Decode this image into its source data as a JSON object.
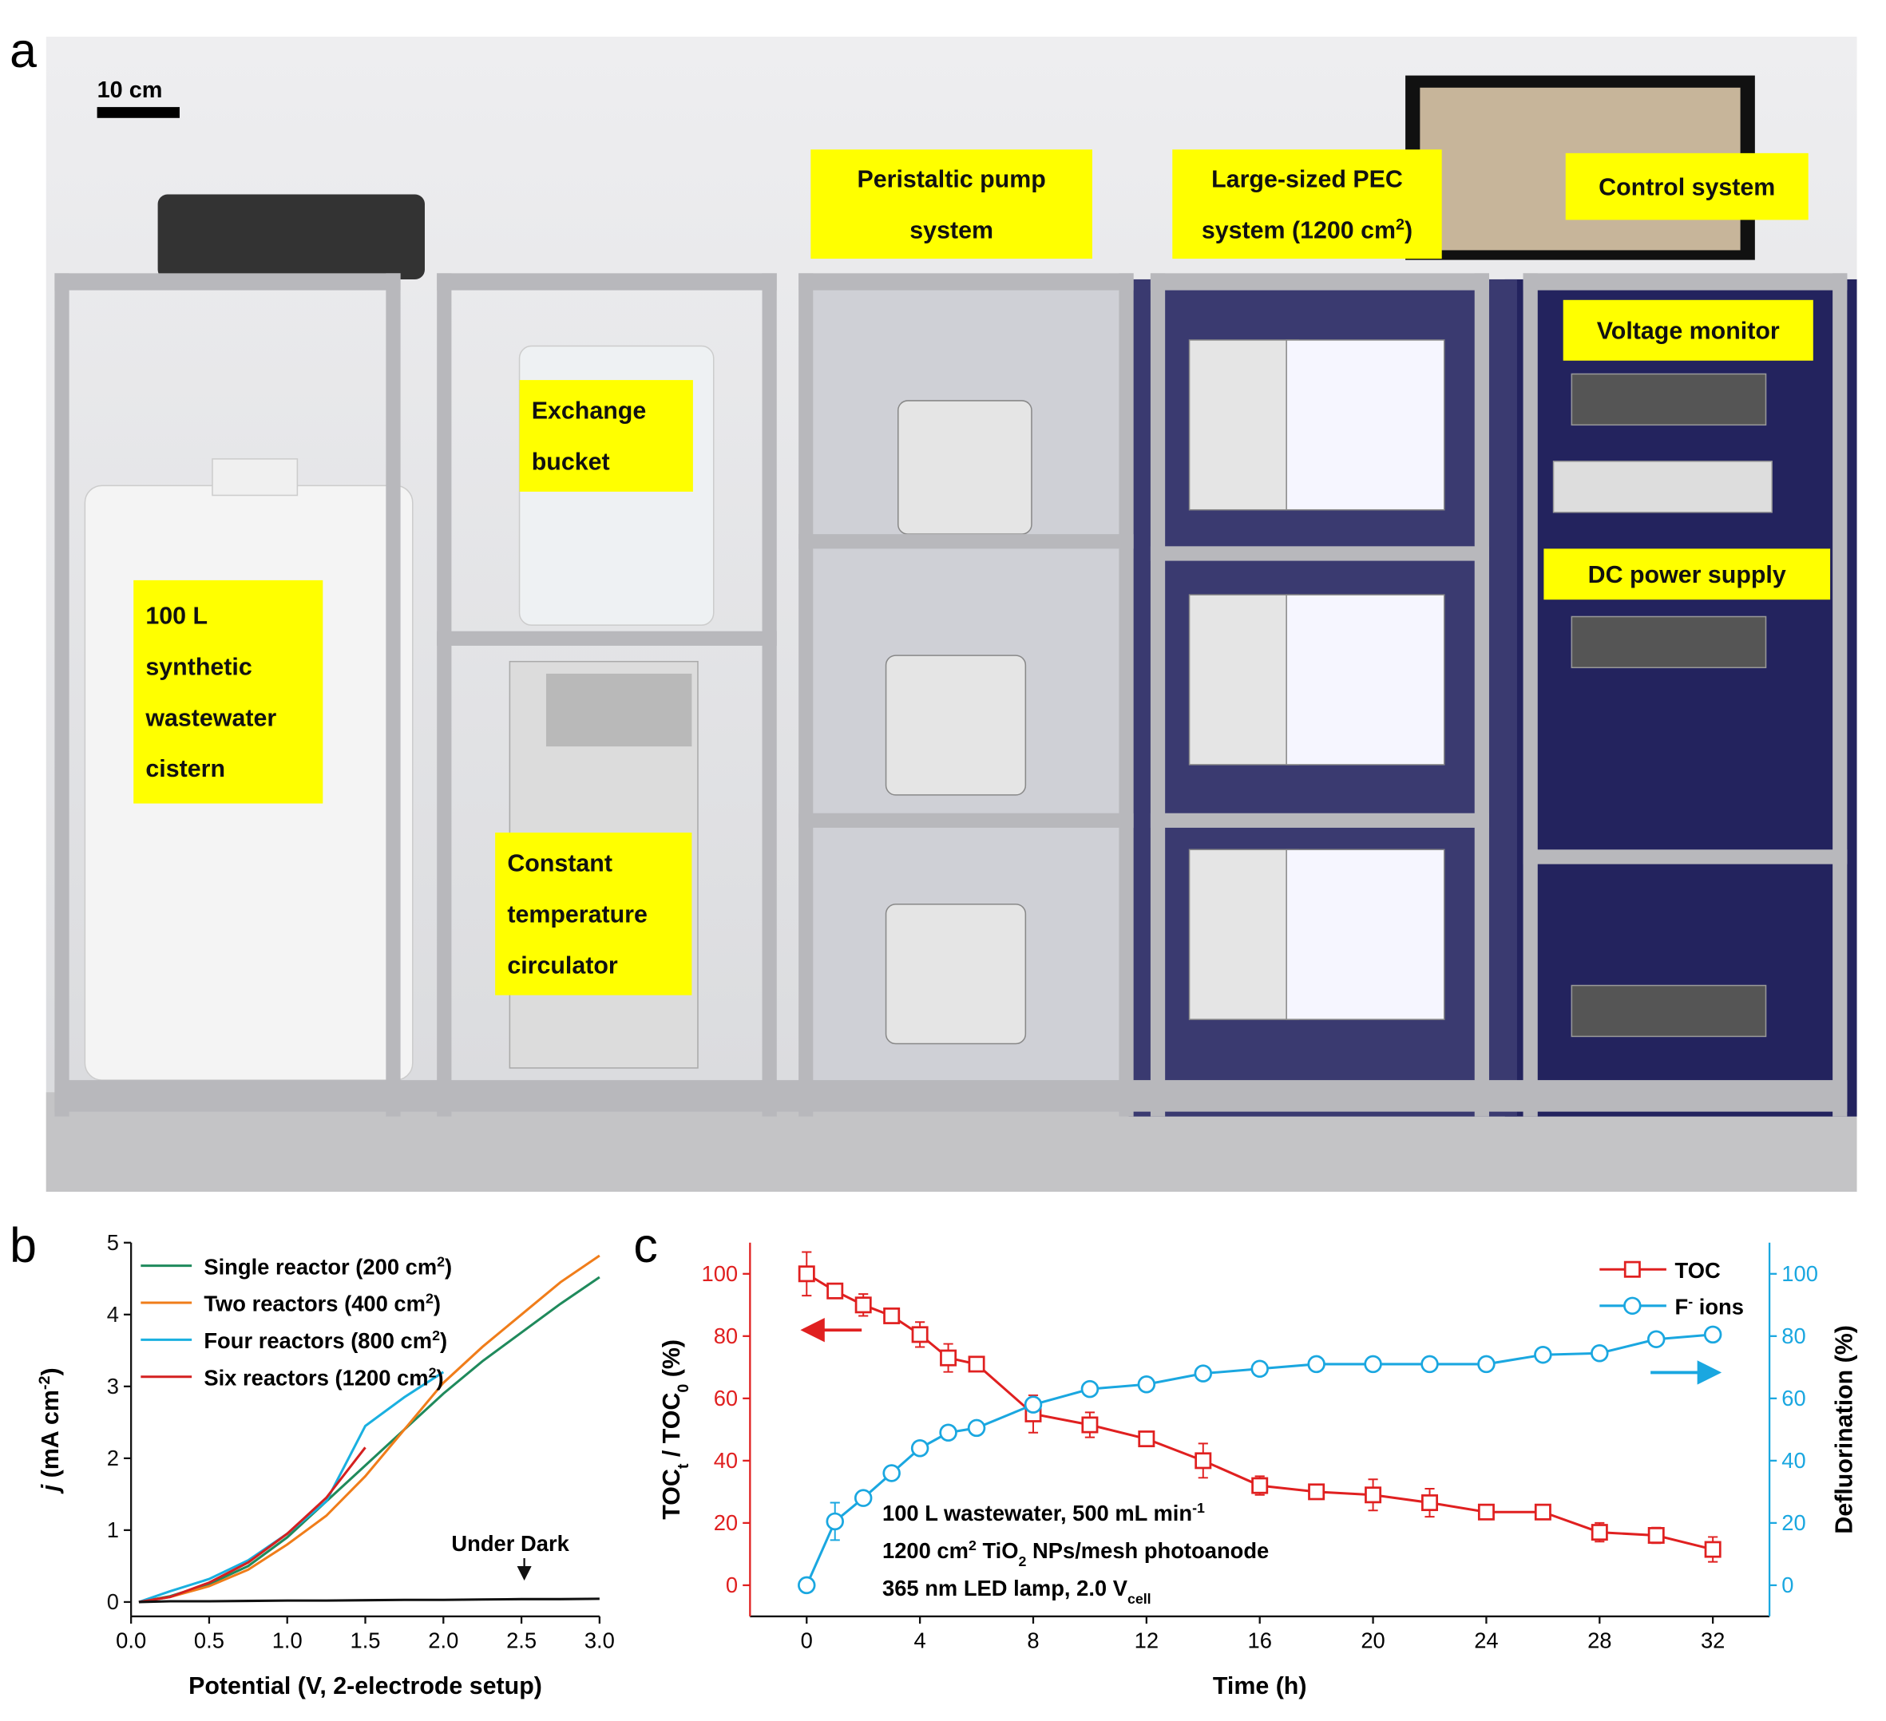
{
  "panel_a": {
    "label": "a",
    "scale_bar": "10 cm",
    "callouts": [
      {
        "lines": [
          "Peristaltic pump",
          "system"
        ]
      },
      {
        "lines": [
          "Large-sized PEC",
          [
            "system (1200 cm",
            {
              "sup": "2"
            },
            ")"
          ]
        ]
      },
      {
        "lines": [
          "Control system"
        ]
      },
      {
        "lines": [
          "Voltage monitor"
        ]
      },
      {
        "lines": [
          "Exchange",
          "bucket"
        ]
      },
      {
        "lines": [
          "DC power supply"
        ]
      },
      {
        "lines": [
          "100 L",
          "synthetic",
          "wastewater",
          "cistern"
        ]
      },
      {
        "lines": [
          "Constant",
          "temperature",
          "circulator"
        ]
      }
    ]
  },
  "chart_data": [
    {
      "type": "line",
      "panel_label": "b",
      "x_label": "Potential (V, 2-electrode setup)",
      "y_label": [
        {
          "i": "j"
        },
        " (mA cm",
        {
          "sup": "-2"
        },
        ")"
      ],
      "x": [
        0.05,
        0.25,
        0.5,
        0.75,
        1.0,
        1.25,
        1.5,
        1.75,
        2.0,
        2.25,
        2.5,
        2.75,
        3.0
      ],
      "series": [
        {
          "name": [
            "Single reactor (200 cm",
            {
              "sup": "2"
            },
            ")"
          ],
          "color": "#1f8a5c",
          "values": [
            0,
            0.08,
            0.25,
            0.5,
            0.9,
            1.4,
            1.9,
            2.4,
            2.9,
            3.35,
            3.75,
            4.15,
            4.52
          ]
        },
        {
          "name": [
            "Two reactors (400 cm",
            {
              "sup": "2"
            },
            ")"
          ],
          "color": "#f07d1a",
          "values": [
            0,
            0.07,
            0.22,
            0.45,
            0.8,
            1.2,
            1.75,
            2.4,
            3.05,
            3.55,
            4.0,
            4.45,
            4.82
          ]
        },
        {
          "name": [
            "Four reactors (800 cm",
            {
              "sup": "2"
            },
            ")"
          ],
          "color": "#1ab0e0",
          "values": [
            0,
            0.15,
            0.32,
            0.58,
            0.95,
            1.4,
            2.45,
            2.85,
            3.2,
            null,
            null,
            null,
            null
          ]
        },
        {
          "name": [
            "Six reactors (1200 cm",
            {
              "sup": "2"
            },
            ")"
          ],
          "color": "#d42020",
          "values": [
            0,
            0.07,
            0.27,
            0.55,
            0.95,
            1.45,
            2.15,
            null,
            null,
            null,
            null,
            null,
            null
          ]
        },
        {
          "name": "Under Dark",
          "color": "#111111",
          "direct_label": true,
          "values": [
            0,
            0.01,
            0.01,
            0.015,
            0.02,
            0.02,
            0.025,
            0.03,
            0.03,
            0.035,
            0.04,
            0.04,
            0.045
          ]
        }
      ],
      "xlim": [
        0,
        3
      ],
      "ylim": [
        -0.2,
        5
      ],
      "xticks": [
        {
          "value": 0,
          "label": "0.0"
        },
        {
          "value": 0.5,
          "label": "0.5"
        },
        {
          "value": 1,
          "label": "1.0"
        },
        {
          "value": 1.5,
          "label": "1.5"
        },
        {
          "value": 2,
          "label": "2.0"
        },
        {
          "value": 2.5,
          "label": "2.5"
        },
        {
          "value": 3,
          "label": "3.0"
        }
      ],
      "yticks": [
        0,
        1,
        2,
        3,
        4,
        5
      ],
      "legend": "upper left"
    },
    {
      "type": "line",
      "panel_label": "c",
      "x_label": "Time (h)",
      "y_label": [
        "TOC",
        {
          "sub": "t"
        },
        " / TOC",
        {
          "sub": "0"
        },
        " (%)"
      ],
      "y2_label": "Defluorination (%)",
      "annotations": [
        [
          "100 L wastewater, 500 mL min",
          {
            "sup": "-1"
          }
        ],
        [
          "1200 cm",
          {
            "sup": "2"
          },
          " TiO",
          {
            "sub": "2"
          },
          " NPs/mesh photoanode"
        ],
        [
          "365 nm LED lamp, 2.0 V",
          {
            "sub": "cell"
          }
        ]
      ],
      "x": [
        0,
        1,
        2,
        3,
        4,
        5,
        6,
        8,
        10,
        12,
        14,
        16,
        18,
        20,
        22,
        24,
        26,
        28,
        30,
        32
      ],
      "series": [
        {
          "name": "TOC",
          "color": "#e02020",
          "marker": "square",
          "values": [
            100,
            94.5,
            90,
            86.5,
            80.5,
            73,
            71,
            55,
            51.5,
            47,
            40,
            32,
            30,
            29,
            26.5,
            23.5,
            23.5,
            17,
            16,
            11.5
          ],
          "errors": [
            7,
            1.5,
            3.5,
            2,
            4,
            4.5,
            2,
            6,
            4,
            1.5,
            5.5,
            3,
            1.5,
            5,
            4.5,
            1.5,
            1.5,
            3,
            2.5,
            4
          ]
        },
        {
          "name": [
            "F",
            {
              "sup": "-"
            },
            " ions"
          ],
          "color": "#1aa7e0",
          "marker": "circle",
          "axis": "y2",
          "values": [
            0,
            20.5,
            28,
            36,
            44,
            49,
            50.5,
            58,
            63,
            64.5,
            68,
            69.5,
            71,
            71,
            71,
            71,
            74,
            74.5,
            79,
            80.5
          ],
          "errors": [
            0,
            6,
            2,
            2,
            1.5,
            1,
            1,
            2,
            1.5,
            2,
            1,
            1,
            1,
            1,
            1,
            1,
            1,
            1,
            1.5,
            1.5
          ]
        }
      ],
      "xlim": [
        -2,
        34
      ],
      "ylim": [
        -10,
        110
      ],
      "y2lim": [
        -10,
        110
      ],
      "xticks": [
        0,
        4,
        8,
        12,
        16,
        20,
        24,
        28,
        32
      ],
      "yticks": [
        0,
        20,
        40,
        60,
        80,
        100
      ],
      "y2ticks": [
        0,
        20,
        40,
        60,
        80,
        100
      ],
      "legend": "upper right"
    }
  ]
}
